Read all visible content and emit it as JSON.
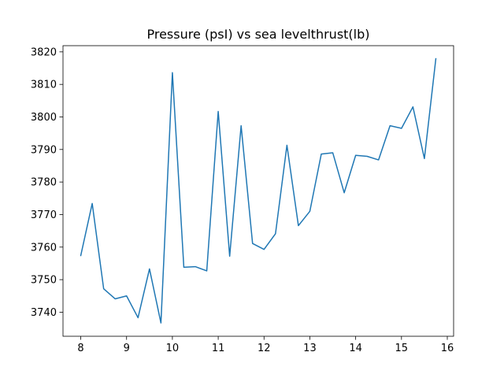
{
  "chart_data": {
    "type": "line",
    "title": "Pressure  (psI) vs sea levelthrust(lb)",
    "xlabel": "",
    "ylabel": "",
    "xlim": [
      7.6125,
      16.1375
    ],
    "ylim": [
      3732.6,
      3821.9
    ],
    "xticks": [
      8,
      9,
      10,
      11,
      12,
      13,
      14,
      15,
      16
    ],
    "yticks": [
      3740,
      3750,
      3760,
      3770,
      3780,
      3790,
      3800,
      3810,
      3820
    ],
    "grid": false,
    "line_color": "#1f77b4",
    "series": [
      {
        "x": [
          8.0,
          8.25,
          8.5,
          8.75,
          9.0,
          9.25,
          9.5,
          9.75,
          10.0,
          10.25,
          10.5,
          10.75,
          11.0,
          11.25,
          11.5,
          11.75,
          12.0,
          12.25,
          12.5,
          12.75,
          13.0,
          13.25,
          13.5,
          13.75,
          14.0,
          14.25,
          14.5,
          14.75,
          15.0,
          15.25,
          15.5,
          15.75
        ],
        "values": [
          3757.4,
          3773.4,
          3747.2,
          3744.1,
          3745.0,
          3738.3,
          3753.3,
          3736.7,
          3813.6,
          3753.8,
          3754.0,
          3752.7,
          3801.7,
          3757.2,
          3797.3,
          3761.1,
          3759.3,
          3764.1,
          3791.3,
          3766.6,
          3771.0,
          3788.6,
          3789.0,
          3776.7,
          3788.2,
          3787.9,
          3786.8,
          3797.3,
          3796.5,
          3803.1,
          3787.2,
          3817.9
        ]
      }
    ]
  }
}
